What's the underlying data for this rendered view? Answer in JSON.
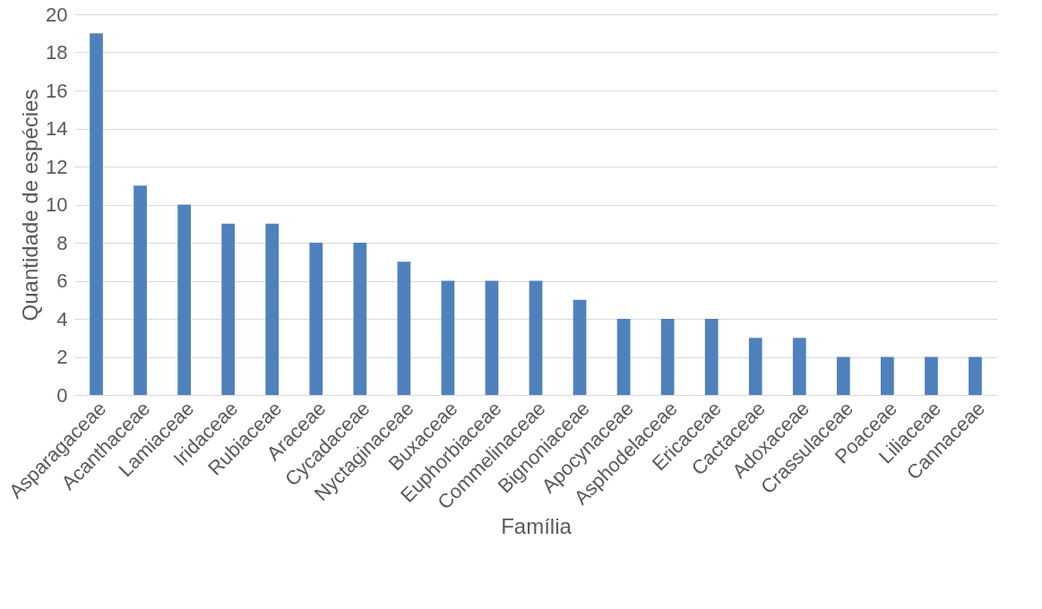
{
  "chart_data": {
    "type": "bar",
    "xlabel": "Família",
    "ylabel": "Quantidade de espécies",
    "categories": [
      "Asparagaceae",
      "Acanthaceae",
      "Lamiaceae",
      "Iridaceae",
      "Rubiaceae",
      "Araceae",
      "Cycadaceae",
      "Nyctaginaceae",
      "Buxaceae",
      "Euphorbiaceae",
      "Commelinaceae",
      "Bignoniaceae",
      "Apocynaceae",
      "Asphodelaceae",
      "Ericaceae",
      "Cactaceae",
      "Adoxaceae",
      "Crassulaceae",
      "Poaceae",
      "Liliaceae",
      "Cannaceae"
    ],
    "values": [
      19,
      11,
      10,
      9,
      9,
      8,
      8,
      7,
      6,
      6,
      6,
      5,
      4,
      4,
      4,
      3,
      3,
      2,
      2,
      2,
      2
    ],
    "color": "#4f81bd",
    "ylim": [
      0,
      20
    ],
    "yticks": [
      0,
      2,
      4,
      6,
      8,
      10,
      12,
      14,
      16,
      18,
      20
    ],
    "grid": "y"
  }
}
